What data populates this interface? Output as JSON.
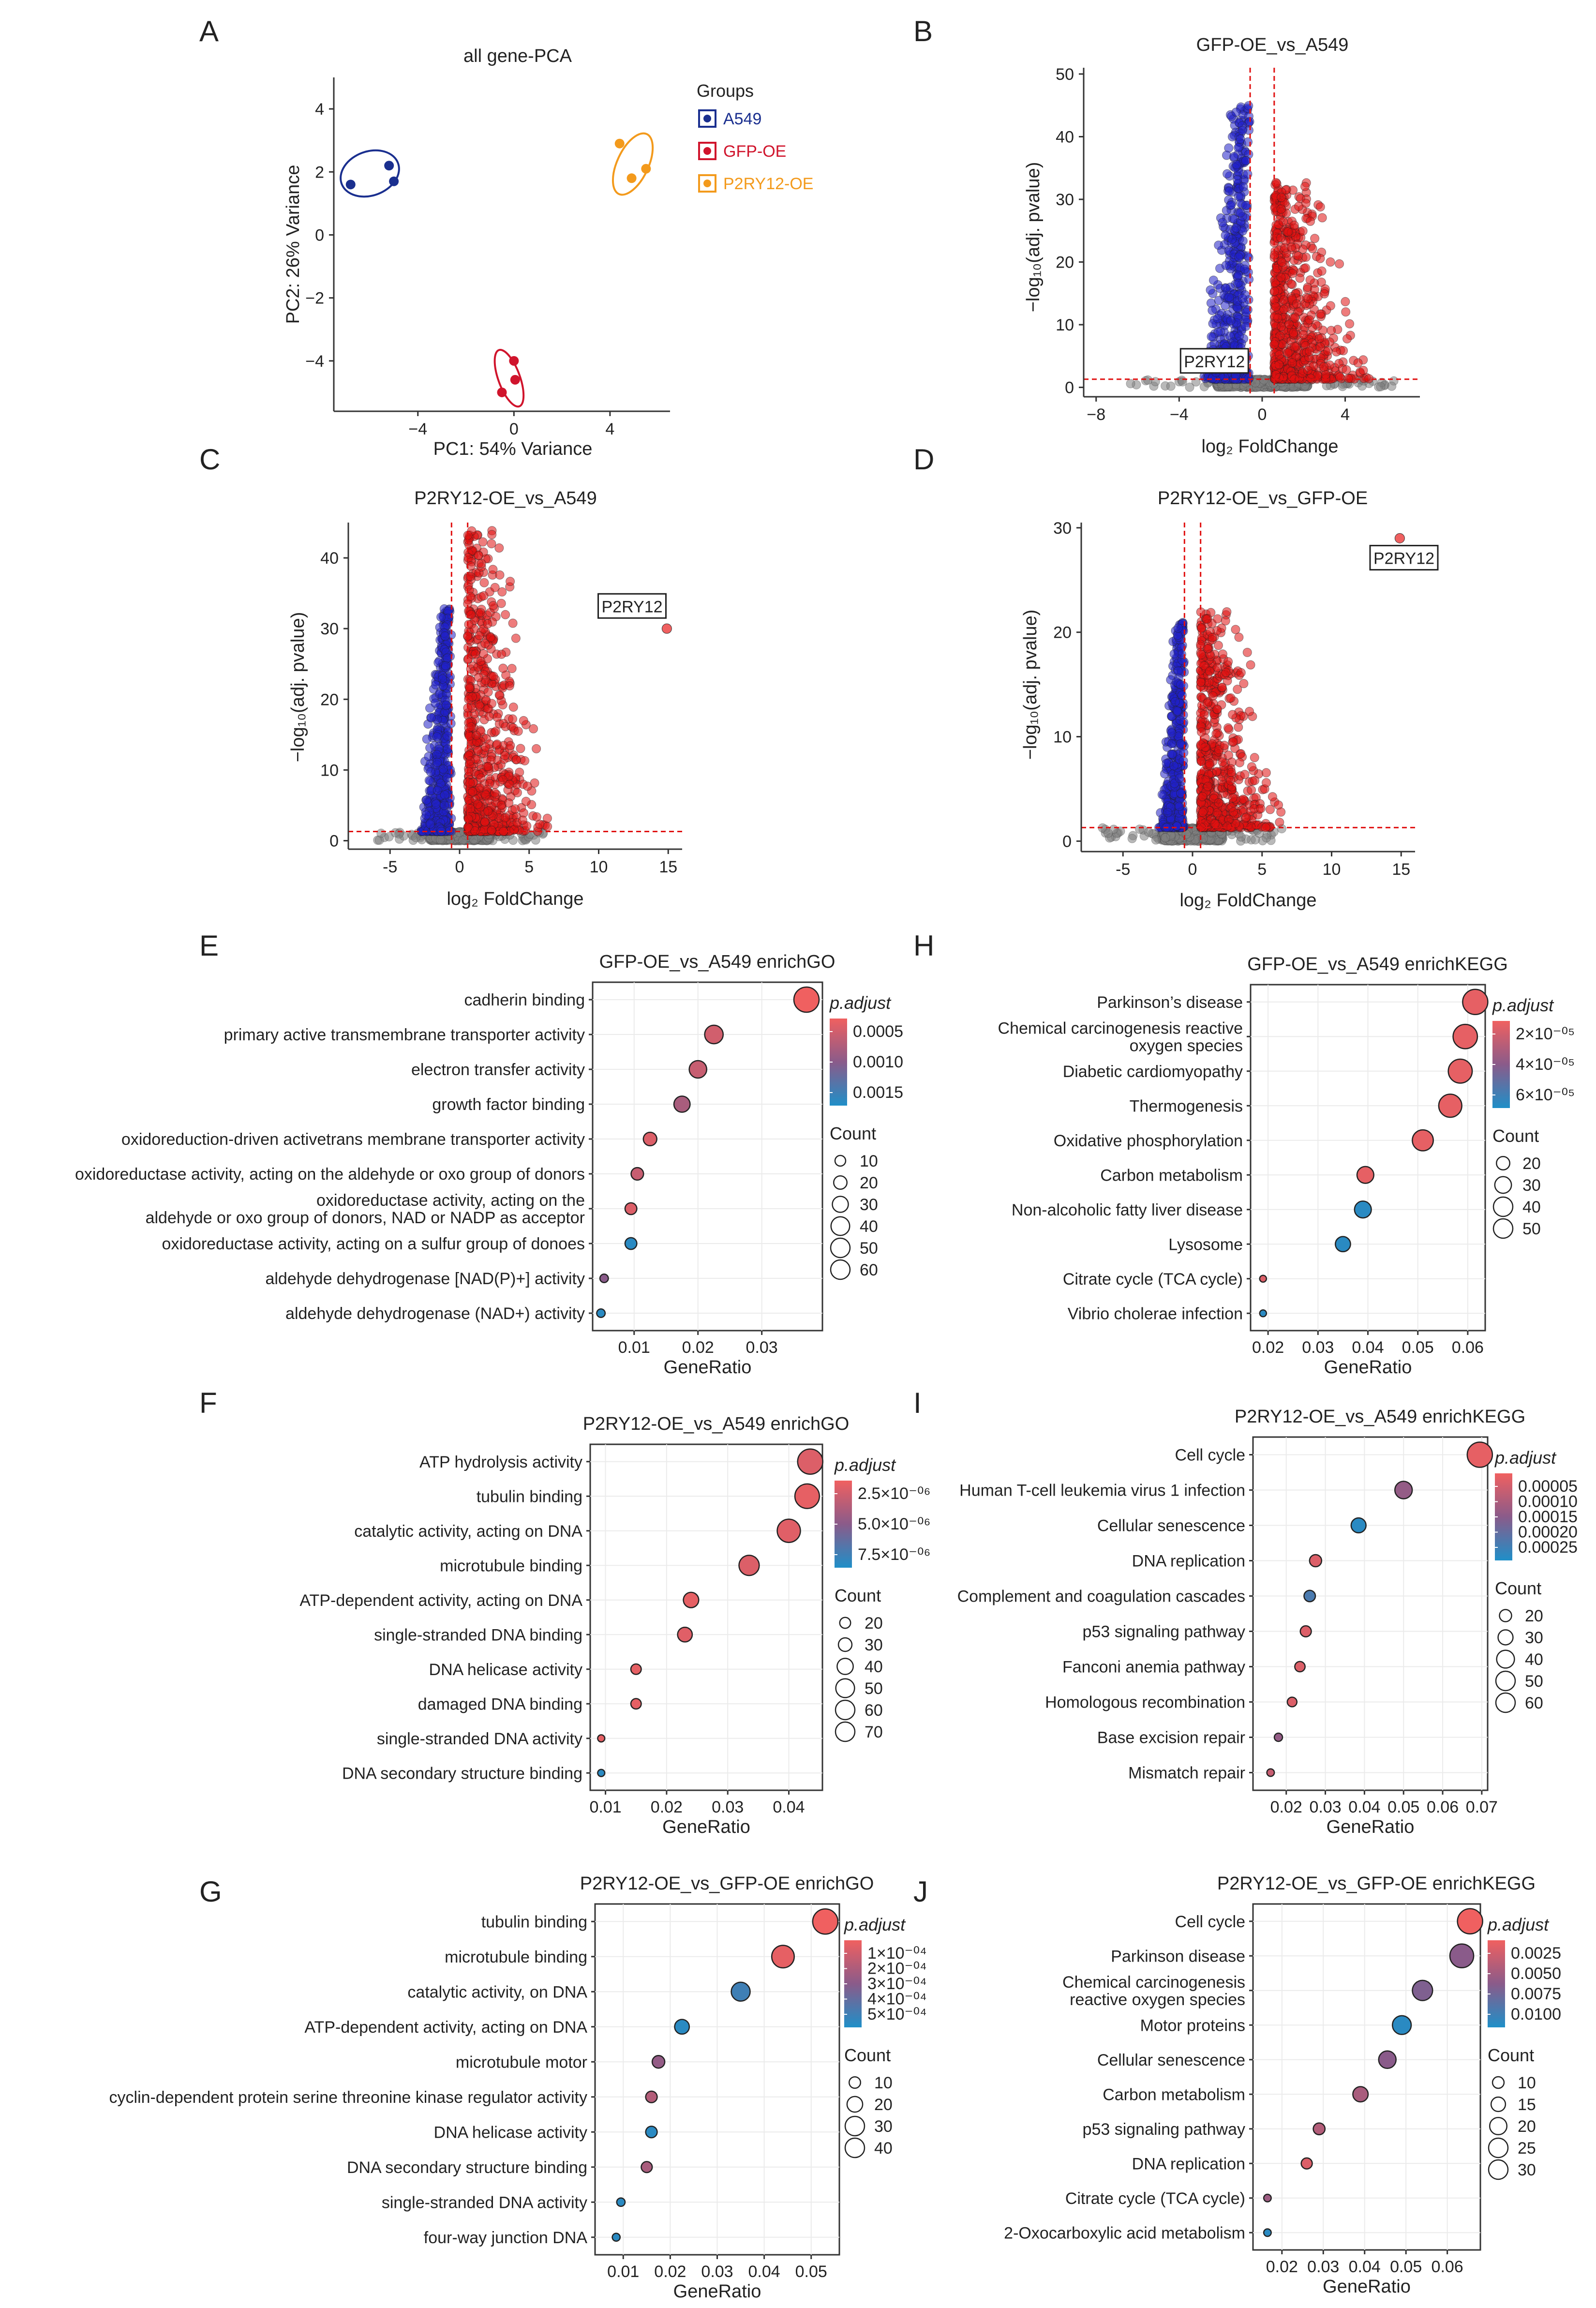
{
  "panels": {
    "A": "A",
    "B": "B",
    "C": "C",
    "D": "D",
    "E": "E",
    "F": "F",
    "G": "G",
    "H": "H",
    "I": "I",
    "J": "J"
  },
  "colors": {
    "a549": "#1a2f8f",
    "gfp": "#d0142c",
    "p2ry12": "#f39a1c",
    "up": "#e01010",
    "down": "#2020c8",
    "ns": "#808080",
    "grad_low": "#f06060",
    "grad_mid": "#8a5b8a",
    "grad_high": "#1f8fc8"
  },
  "chart_data": [
    {
      "id": "A",
      "type": "scatter",
      "title": "all gene-PCA",
      "xlabel": "PC1: 54%  Variance",
      "ylabel": "PC2: 26%  Variance",
      "xlim": [
        -7.5,
        6.5
      ],
      "ylim": [
        -5.6,
        5.0
      ],
      "xticks": [
        -4,
        0,
        4
      ],
      "xtick_labels": [
        "−4",
        "0",
        "4"
      ],
      "yticks": [
        -4,
        -2,
        0,
        2,
        4
      ],
      "ytick_labels": [
        "−4",
        "−2",
        "0",
        "2",
        "4"
      ],
      "legend_title": "Groups",
      "series": [
        {
          "name": "A549",
          "color": "#1a2f8f",
          "x": [
            -6.8,
            -5.2,
            -5.0
          ],
          "y": [
            1.6,
            2.2,
            1.7
          ],
          "ellipse": {
            "cx": -6.0,
            "cy": 1.95,
            "rx": 1.25,
            "ry": 0.7,
            "rot": 20
          }
        },
        {
          "name": "GFP-OE",
          "color": "#d0142c",
          "x": [
            -0.5,
            0.0,
            0.05
          ],
          "y": [
            -5.0,
            -4.0,
            -4.6
          ],
          "ellipse": {
            "cx": -0.2,
            "cy": -4.55,
            "rx": 0.45,
            "ry": 0.95,
            "rot": 20
          }
        },
        {
          "name": "P2RY12-OE",
          "color": "#f39a1c",
          "x": [
            4.4,
            4.9,
            5.5
          ],
          "y": [
            2.9,
            1.8,
            2.1
          ],
          "ellipse": {
            "cx": 4.95,
            "cy": 2.25,
            "rx": 0.65,
            "ry": 1.05,
            "rot": -25
          }
        }
      ]
    },
    {
      "id": "B",
      "type": "scatter",
      "title": "GFP-OE_vs_A549",
      "xlabel": "log₂ FoldChange",
      "ylabel": "−log₁₀(adj. pvalue)",
      "xlim": [
        -8.6,
        7.6
      ],
      "ylim": [
        -1.5,
        51
      ],
      "xticks": [
        -8,
        -4,
        0,
        4
      ],
      "xtick_labels": [
        "−8",
        "−4",
        "0",
        "4"
      ],
      "yticks": [
        0,
        10,
        20,
        30,
        40,
        50
      ],
      "ytick_labels": [
        "0",
        "10",
        "20",
        "30",
        "40",
        "50"
      ],
      "vlines": [
        -0.58,
        0.58
      ],
      "hline": 1.3,
      "highlight": {
        "label": "P2RY12",
        "x": -2.3,
        "y": 4.0
      },
      "cluster_extent": {
        "down_xmin": -3.0,
        "down_ymax": 45,
        "up_xmax": 5.5,
        "up_ymax": 33
      }
    },
    {
      "id": "C",
      "type": "scatter",
      "title": "P2RY12-OE_vs_A549",
      "xlabel": "log₂ FoldChange",
      "ylabel": "−log₁₀(adj. pvalue)",
      "xlim": [
        -8,
        16
      ],
      "ylim": [
        -1.2,
        45
      ],
      "xticks": [
        -5,
        0,
        5,
        10,
        15
      ],
      "xtick_labels": [
        "-5",
        "0",
        "5",
        "10",
        "15"
      ],
      "yticks": [
        0,
        10,
        20,
        30,
        40
      ],
      "ytick_labels": [
        "0",
        "10",
        "20",
        "30",
        "40"
      ],
      "vlines": [
        -0.58,
        0.58
      ],
      "hline": 1.3,
      "highlight": {
        "label": "P2RY12",
        "x": 14.9,
        "y": 30.0,
        "label_x": 12.4,
        "label_y": 33.0
      },
      "cluster_extent": {
        "down_xmin": -3.0,
        "down_ymax": 33,
        "up_xmax": 7.0,
        "up_ymax": 44
      }
    },
    {
      "id": "D",
      "type": "scatter",
      "title": "P2RY12-OE_vs_GFP-OE",
      "xlabel": "log₂ FoldChange",
      "ylabel": "−log₁₀(adj. pvalue)",
      "xlim": [
        -8,
        16
      ],
      "ylim": [
        -1.0,
        30.5
      ],
      "xticks": [
        -5,
        0,
        5,
        10,
        15
      ],
      "xtick_labels": [
        "-5",
        "0",
        "5",
        "10",
        "15"
      ],
      "yticks": [
        0,
        10,
        20,
        30
      ],
      "ytick_labels": [
        "0",
        "10",
        "20",
        "30"
      ],
      "vlines": [
        -0.58,
        0.58
      ],
      "hline": 1.3,
      "highlight": {
        "label": "P2RY12",
        "x": 14.9,
        "y": 29.0,
        "label_x": 15.2,
        "label_y": 27.0
      },
      "cluster_extent": {
        "down_xmin": -2.5,
        "down_ymax": 21,
        "up_xmax": 7.0,
        "up_ymax": 22
      }
    },
    {
      "id": "E",
      "type": "scatter",
      "title": "GFP-OE_vs_A549 enrichGO",
      "xlabel": "GeneRatio",
      "xlim": [
        0.0035,
        0.0395
      ],
      "xticks": [
        0.01,
        0.02,
        0.03
      ],
      "xtick_labels": [
        "0.01",
        "0.02",
        "0.03"
      ],
      "categories": [
        "cadherin binding",
        "primary active transmembrane transporter activity",
        "electron transfer activity",
        "growth factor binding",
        "oxidoreduction-driven activetrans membrane transporter activity",
        "oxidoreductase activity, acting on the aldehyde or oxo group of donors",
        "oxidoreductase activity, acting on the|aldehyde or oxo group of donors, NAD or  NADP as acceptor",
        "oxidoreductase activity, acting on a sulfur group of donoes",
        "aldehyde dehydrogenase [NAD(P)+] activity",
        "aldehyde dehydrogenase (NAD+) activity"
      ],
      "x": [
        0.037,
        0.0225,
        0.02,
        0.0175,
        0.0125,
        0.0105,
        0.0095,
        0.0095,
        0.0053,
        0.0048
      ],
      "color_t": [
        0.0,
        0.15,
        0.2,
        0.35,
        0.1,
        0.2,
        0.1,
        0.95,
        0.5,
        0.95
      ],
      "size": [
        60,
        40,
        37,
        33,
        25,
        22,
        20,
        20,
        10,
        10
      ],
      "colorbar_title": "p.adjust",
      "colorbar_labels": [
        "0.0005",
        "0.0010",
        "0.0015"
      ],
      "size_legend_title": "Count",
      "size_legend": [
        10,
        20,
        30,
        40,
        50,
        60
      ],
      "size_legend_labels": [
        "10",
        "20",
        "30",
        "40",
        "50",
        "60"
      ],
      "size_range": [
        5,
        60
      ]
    },
    {
      "id": "F",
      "type": "scatter",
      "title": "P2RY12-OE_vs_A549 enrichGO",
      "xlabel": "GeneRatio",
      "xlim": [
        0.0075,
        0.0455
      ],
      "xticks": [
        0.01,
        0.02,
        0.03,
        0.04
      ],
      "xtick_labels": [
        "0.01",
        "0.02",
        "0.03",
        "0.04"
      ],
      "categories": [
        "ATP hydrolysis activity",
        "tubulin binding",
        "catalytic activity, acting on DNA",
        "microtubule binding",
        "ATP-dependent activity, acting on DNA",
        "single-stranded DNA binding",
        "DNA helicase activity",
        "damaged DNA binding",
        "single-stranded DNA activity",
        "DNA secondary structure binding"
      ],
      "x": [
        0.0435,
        0.043,
        0.04,
        0.0335,
        0.024,
        0.023,
        0.015,
        0.015,
        0.0093,
        0.0093
      ],
      "color_t": [
        0.1,
        0.05,
        0.08,
        0.1,
        0.05,
        0.08,
        0.05,
        0.05,
        0.05,
        0.95
      ],
      "size": [
        70,
        68,
        64,
        55,
        40,
        38,
        25,
        25,
        15,
        15
      ],
      "colorbar_title": "p.adjust",
      "colorbar_labels": [
        "2.5×10⁻⁰⁶",
        "5.0×10⁻⁰⁶",
        "7.5×10⁻⁰⁶"
      ],
      "size_legend_title": "Count",
      "size_legend": [
        20,
        30,
        40,
        50,
        60,
        70
      ],
      "size_legend_labels": [
        "20",
        "30",
        "40",
        "50",
        "60",
        "70"
      ],
      "size_range": [
        14,
        70
      ]
    },
    {
      "id": "G",
      "type": "scatter",
      "title": "P2RY12-OE_vs_GFP-OE enrichGO",
      "xlabel": "GeneRatio",
      "xlim": [
        0.004,
        0.056
      ],
      "xticks": [
        0.01,
        0.02,
        0.03,
        0.04,
        0.05
      ],
      "xtick_labels": [
        "0.01",
        "0.02",
        "0.03",
        "0.04",
        "0.05"
      ],
      "categories": [
        "tubulin binding",
        "microtubule binding",
        "catalytic activity, on DNA",
        "ATP-dependent activity, acting on DNA",
        "microtubule motor",
        "cyclin-dependent protein serine threonine kinase regulator activity",
        "DNA helicase activity",
        "DNA secondary structure binding",
        "single-stranded DNA activity",
        "four-way junction DNA"
      ],
      "x": [
        0.053,
        0.044,
        0.035,
        0.0225,
        0.0175,
        0.016,
        0.016,
        0.015,
        0.0095,
        0.0085
      ],
      "color_t": [
        0.0,
        0.05,
        0.85,
        0.95,
        0.45,
        0.3,
        0.95,
        0.35,
        0.95,
        0.95
      ],
      "size": [
        40,
        35,
        28,
        20,
        16,
        14,
        14,
        13,
        8,
        7
      ],
      "colorbar_title": "p.adjust",
      "colorbar_labels": [
        "1×10⁻⁰⁴",
        "2×10⁻⁰⁴",
        "3×10⁻⁰⁴",
        "4×10⁻⁰⁴",
        "5×10⁻⁰⁴"
      ],
      "size_legend_title": "Count",
      "size_legend": [
        10,
        20,
        30,
        40
      ],
      "size_legend_labels": [
        "10",
        "20",
        "30",
        "40"
      ],
      "size_range": [
        5,
        40
      ]
    },
    {
      "id": "H",
      "type": "scatter",
      "title": "GFP-OE_vs_A549 enrichKEGG",
      "xlabel": "GeneRatio",
      "xlim": [
        0.0165,
        0.0635
      ],
      "xticks": [
        0.02,
        0.03,
        0.04,
        0.05,
        0.06
      ],
      "xtick_labels": [
        "0.02",
        "0.03",
        "0.04",
        "0.05",
        "0.06"
      ],
      "categories": [
        "Parkinson’s disease",
        "Chemical carcinogenesis reactive|oxygen species",
        "Diabetic cardiomyopathy",
        "Thermogenesis",
        "Oxidative phosphorylation",
        "Carbon metabolism",
        "Non-alcoholic fatty liver disease",
        "Lysosome",
        "Citrate cycle (TCA cycle)",
        "Vibrio cholerae infection"
      ],
      "x": [
        0.0615,
        0.0595,
        0.0585,
        0.0565,
        0.051,
        0.0395,
        0.039,
        0.035,
        0.019,
        0.019
      ],
      "color_t": [
        0.05,
        0.05,
        0.05,
        0.05,
        0.05,
        0.05,
        0.95,
        0.95,
        0.1,
        0.95
      ],
      "size": [
        52,
        50,
        49,
        47,
        42,
        32,
        32,
        28,
        8,
        8
      ],
      "colorbar_title": "p.adjust",
      "colorbar_labels": [
        "2×10⁻⁰⁵",
        "4×10⁻⁰⁵",
        "6×10⁻⁰⁵"
      ],
      "size_legend_title": "Count",
      "size_legend": [
        20,
        30,
        40,
        50
      ],
      "size_legend_labels": [
        "20",
        "30",
        "40",
        "50"
      ],
      "size_range": [
        8,
        52
      ]
    },
    {
      "id": "I",
      "type": "scatter",
      "title": "P2RY12-OE_vs_A549 enrichKEGG",
      "xlabel": "GeneRatio",
      "xlim": [
        0.0115,
        0.0715
      ],
      "xticks": [
        0.02,
        0.03,
        0.04,
        0.05,
        0.06,
        0.07
      ],
      "xtick_labels": [
        "0.02",
        "0.03",
        "0.04",
        "0.05",
        "0.06",
        "0.07"
      ],
      "categories": [
        "Cell cycle",
        "Human T-cell leukemia virus 1 infection",
        "Cellular senescence",
        "DNA replication",
        "Complement and coagulation cascades",
        "p53 signaling pathway",
        "Fanconi anemia pathway",
        "Homologous recombination",
        "Base excision repair",
        "Mismatch repair"
      ],
      "x": [
        0.0695,
        0.05,
        0.0385,
        0.0275,
        0.026,
        0.025,
        0.0235,
        0.0215,
        0.018,
        0.016
      ],
      "color_t": [
        0.05,
        0.45,
        0.95,
        0.1,
        0.8,
        0.1,
        0.1,
        0.1,
        0.45,
        0.2
      ],
      "size": [
        62,
        40,
        33,
        25,
        23,
        22,
        20,
        18,
        14,
        12
      ],
      "colorbar_title": "p.adjust",
      "colorbar_labels": [
        "0.00005",
        "0.00010",
        "0.00015",
        "0.00020",
        "0.00025"
      ],
      "size_legend_title": "Count",
      "size_legend": [
        20,
        30,
        40,
        50,
        60
      ],
      "size_legend_labels": [
        "20",
        "30",
        "40",
        "50",
        "60"
      ],
      "size_range": [
        10,
        62
      ]
    },
    {
      "id": "J",
      "type": "scatter",
      "title": "P2RY12-OE_vs_GFP-OE enrichKEGG",
      "xlabel": "GeneRatio",
      "xlim": [
        0.013,
        0.068
      ],
      "xticks": [
        0.02,
        0.03,
        0.04,
        0.05,
        0.06
      ],
      "xtick_labels": [
        "0.02",
        "0.03",
        "0.04",
        "0.05",
        "0.06"
      ],
      "categories": [
        "Cell cycle",
        "Parkinson disease",
        "Chemical carcinogenesis|reactive oxygen species",
        "Motor proteins",
        "Cellular senescence",
        "Carbon metabolism",
        "p53 signaling pathway",
        "DNA replication",
        "Citrate cycle (TCA cycle)",
        "2-Oxocarboxylic acid metabolism"
      ],
      "x": [
        0.0655,
        0.0635,
        0.054,
        0.049,
        0.0455,
        0.039,
        0.029,
        0.026,
        0.0165,
        0.0165
      ],
      "color_t": [
        0.0,
        0.5,
        0.55,
        0.95,
        0.5,
        0.35,
        0.3,
        0.1,
        0.4,
        0.95
      ],
      "size": [
        32,
        30,
        25,
        23,
        21,
        18,
        13,
        12,
        7,
        7
      ],
      "colorbar_title": "p.adjust",
      "colorbar_labels": [
        "0.0025",
        "0.0050",
        "0.0075",
        "0.0100"
      ],
      "size_legend_title": "Count",
      "size_legend": [
        10,
        15,
        20,
        25,
        30
      ],
      "size_legend_labels": [
        "10",
        "15",
        "20",
        "25",
        "30"
      ],
      "size_range": [
        6,
        32
      ]
    }
  ]
}
